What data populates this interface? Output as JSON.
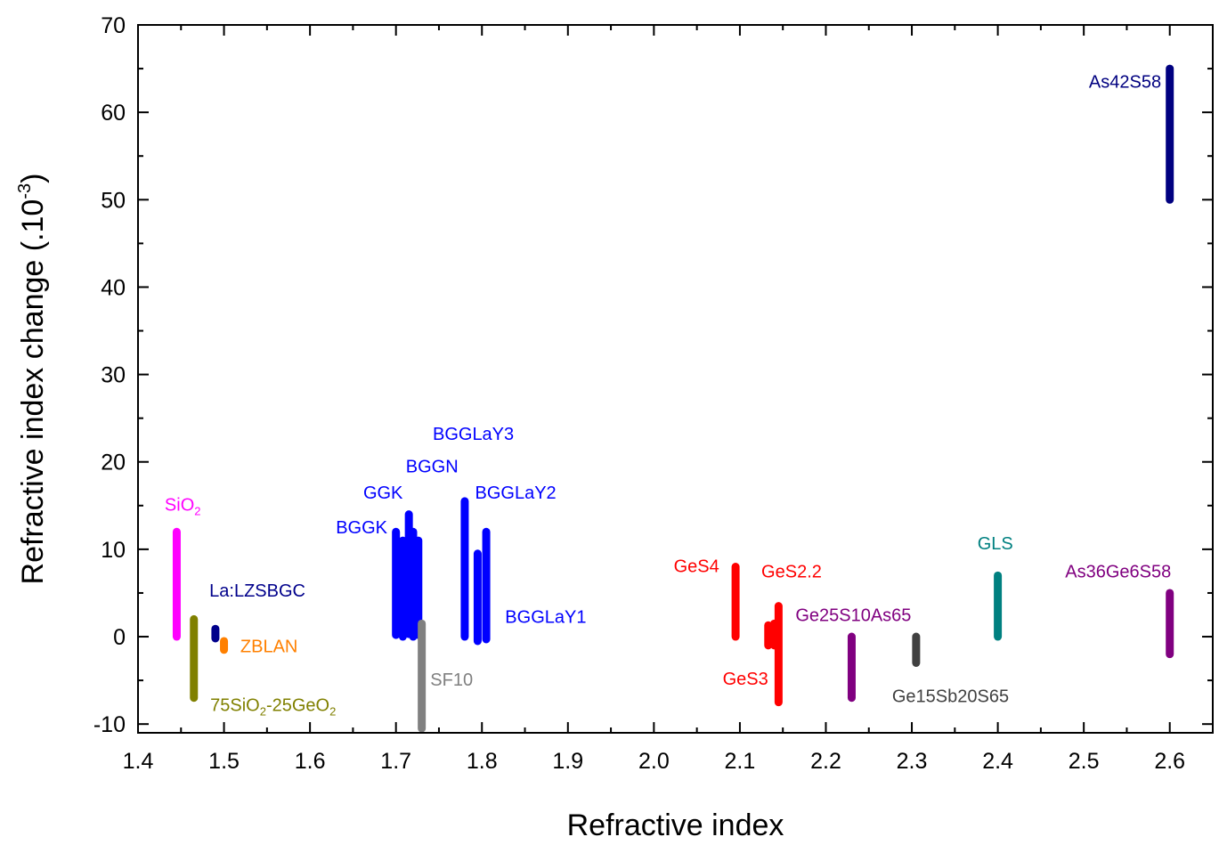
{
  "chart_data": {
    "type": "range-bar",
    "xlabel": "Refractive index",
    "ylabel": {
      "prefix": "Refractive index change (.10",
      "sup": "-3",
      "suffix": ")"
    },
    "xlim": [
      1.4,
      2.65
    ],
    "ylim": [
      -11,
      70
    ],
    "xticks": [
      "1.4",
      "1.5",
      "1.6",
      "1.7",
      "1.8",
      "1.9",
      "2.0",
      "2.1",
      "2.2",
      "2.3",
      "2.4",
      "2.5",
      "2.6"
    ],
    "xtick_values": [
      1.4,
      1.5,
      1.6,
      1.7,
      1.8,
      1.9,
      2.0,
      2.1,
      2.2,
      2.3,
      2.4,
      2.5,
      2.6
    ],
    "yticks": [
      "-10",
      "0",
      "10",
      "20",
      "30",
      "40",
      "50",
      "60",
      "70"
    ],
    "ytick_values": [
      -10,
      0,
      10,
      20,
      30,
      40,
      50,
      60,
      70
    ],
    "grid": false,
    "legend": "none",
    "bars": [
      {
        "x": 1.445,
        "low": 0,
        "high": 12,
        "color": "#ff00ff"
      },
      {
        "x": 1.465,
        "low": -7,
        "high": 2,
        "color": "#808000"
      },
      {
        "x": 1.49,
        "low": -0.2,
        "high": 0.9,
        "color": "#00008b"
      },
      {
        "x": 1.5,
        "low": -1.5,
        "high": -0.5,
        "color": "#ff8000"
      },
      {
        "x": 1.7,
        "low": 0.2,
        "high": 12,
        "color": "#0000ff"
      },
      {
        "x": 1.708,
        "low": 0,
        "high": 11,
        "color": "#0000ff"
      },
      {
        "x": 1.715,
        "low": 0.3,
        "high": 14,
        "color": "#0000ff"
      },
      {
        "x": 1.72,
        "low": 0,
        "high": 12,
        "color": "#0000ff"
      },
      {
        "x": 1.726,
        "low": 0.2,
        "high": 11,
        "color": "#0000ff"
      },
      {
        "x": 1.73,
        "low": -10.5,
        "high": 1.5,
        "color": "#808080"
      },
      {
        "x": 1.78,
        "low": 0,
        "high": 15.5,
        "color": "#0000ff"
      },
      {
        "x": 1.795,
        "low": -0.5,
        "high": 9.5,
        "color": "#0000ff"
      },
      {
        "x": 1.805,
        "low": -0.3,
        "high": 12,
        "color": "#0000ff"
      },
      {
        "x": 2.095,
        "low": 0,
        "high": 8,
        "color": "#ff0000"
      },
      {
        "x": 2.133,
        "low": -1,
        "high": 1.3,
        "color": "#ff0000"
      },
      {
        "x": 2.14,
        "low": -1,
        "high": 1.5,
        "color": "#ff0000"
      },
      {
        "x": 2.145,
        "low": -7.5,
        "high": 3.5,
        "color": "#ff0000"
      },
      {
        "x": 2.23,
        "low": -7,
        "high": 0,
        "color": "#800080"
      },
      {
        "x": 2.305,
        "low": -3,
        "high": 0,
        "color": "#404040"
      },
      {
        "x": 2.4,
        "low": 0,
        "high": 7,
        "color": "#008080"
      },
      {
        "x": 2.6,
        "low": 50,
        "high": 65,
        "color": "#000080"
      },
      {
        "x": 2.6,
        "low": -2,
        "high": 5,
        "color": "#800080"
      }
    ],
    "annotations": [
      {
        "text": "SiO",
        "sub": "2",
        "x": 1.452,
        "y": 14.4,
        "anchor": "middle",
        "color": "#ff00ff"
      },
      {
        "text": "75SiO",
        "sub": "2",
        "text2": "-25GeO",
        "sub2": "2",
        "x": 1.484,
        "y": -8.5,
        "anchor": "start",
        "color": "#808000"
      },
      {
        "text": "La:LZSBGC",
        "x": 1.483,
        "y": 4.6,
        "anchor": "start",
        "color": "#00008b"
      },
      {
        "text": "ZBLAN",
        "x": 1.519,
        "y": -1.8,
        "anchor": "start",
        "color": "#ff8000"
      },
      {
        "text": "BGGK",
        "x": 1.69,
        "y": 11.8,
        "anchor": "end",
        "color": "#0000ff"
      },
      {
        "text": "GGK",
        "x": 1.708,
        "y": 15.8,
        "anchor": "end",
        "color": "#0000ff"
      },
      {
        "text": "BGGN",
        "x": 1.742,
        "y": 18.8,
        "anchor": "middle",
        "color": "#0000ff"
      },
      {
        "text": "BGGLaY3",
        "x": 1.79,
        "y": 22.5,
        "anchor": "middle",
        "color": "#0000ff"
      },
      {
        "text": "BGGLaY2",
        "x": 1.792,
        "y": 15.8,
        "anchor": "start",
        "color": "#0000ff"
      },
      {
        "text": "BGGLaY1",
        "x": 1.827,
        "y": 1.6,
        "anchor": "start",
        "color": "#0000ff"
      },
      {
        "text": "SF10",
        "x": 1.74,
        "y": -5.6,
        "anchor": "start",
        "color": "#808080"
      },
      {
        "text": "GeS4",
        "x": 2.076,
        "y": 7.4,
        "anchor": "end",
        "color": "#ff0000"
      },
      {
        "text": "GeS2.2",
        "x": 2.125,
        "y": 6.8,
        "anchor": "start",
        "color": "#ff0000"
      },
      {
        "text": "GeS3",
        "x": 2.133,
        "y": -5.5,
        "anchor": "end",
        "color": "#ff0000"
      },
      {
        "text": "Ge25S10As65",
        "x": 2.232,
        "y": 1.8,
        "anchor": "middle",
        "color": "#800080"
      },
      {
        "text": "Ge15Sb20S65",
        "x": 2.345,
        "y": -7.5,
        "anchor": "middle",
        "color": "#404040"
      },
      {
        "text": "GLS",
        "x": 2.397,
        "y": 10,
        "anchor": "middle",
        "color": "#008080"
      },
      {
        "text": "As42S58",
        "x": 2.59,
        "y": 62.8,
        "anchor": "end",
        "color": "#000080"
      },
      {
        "text": "As36Ge6S58",
        "x": 2.54,
        "y": 6.8,
        "anchor": "middle",
        "color": "#800080"
      }
    ]
  }
}
